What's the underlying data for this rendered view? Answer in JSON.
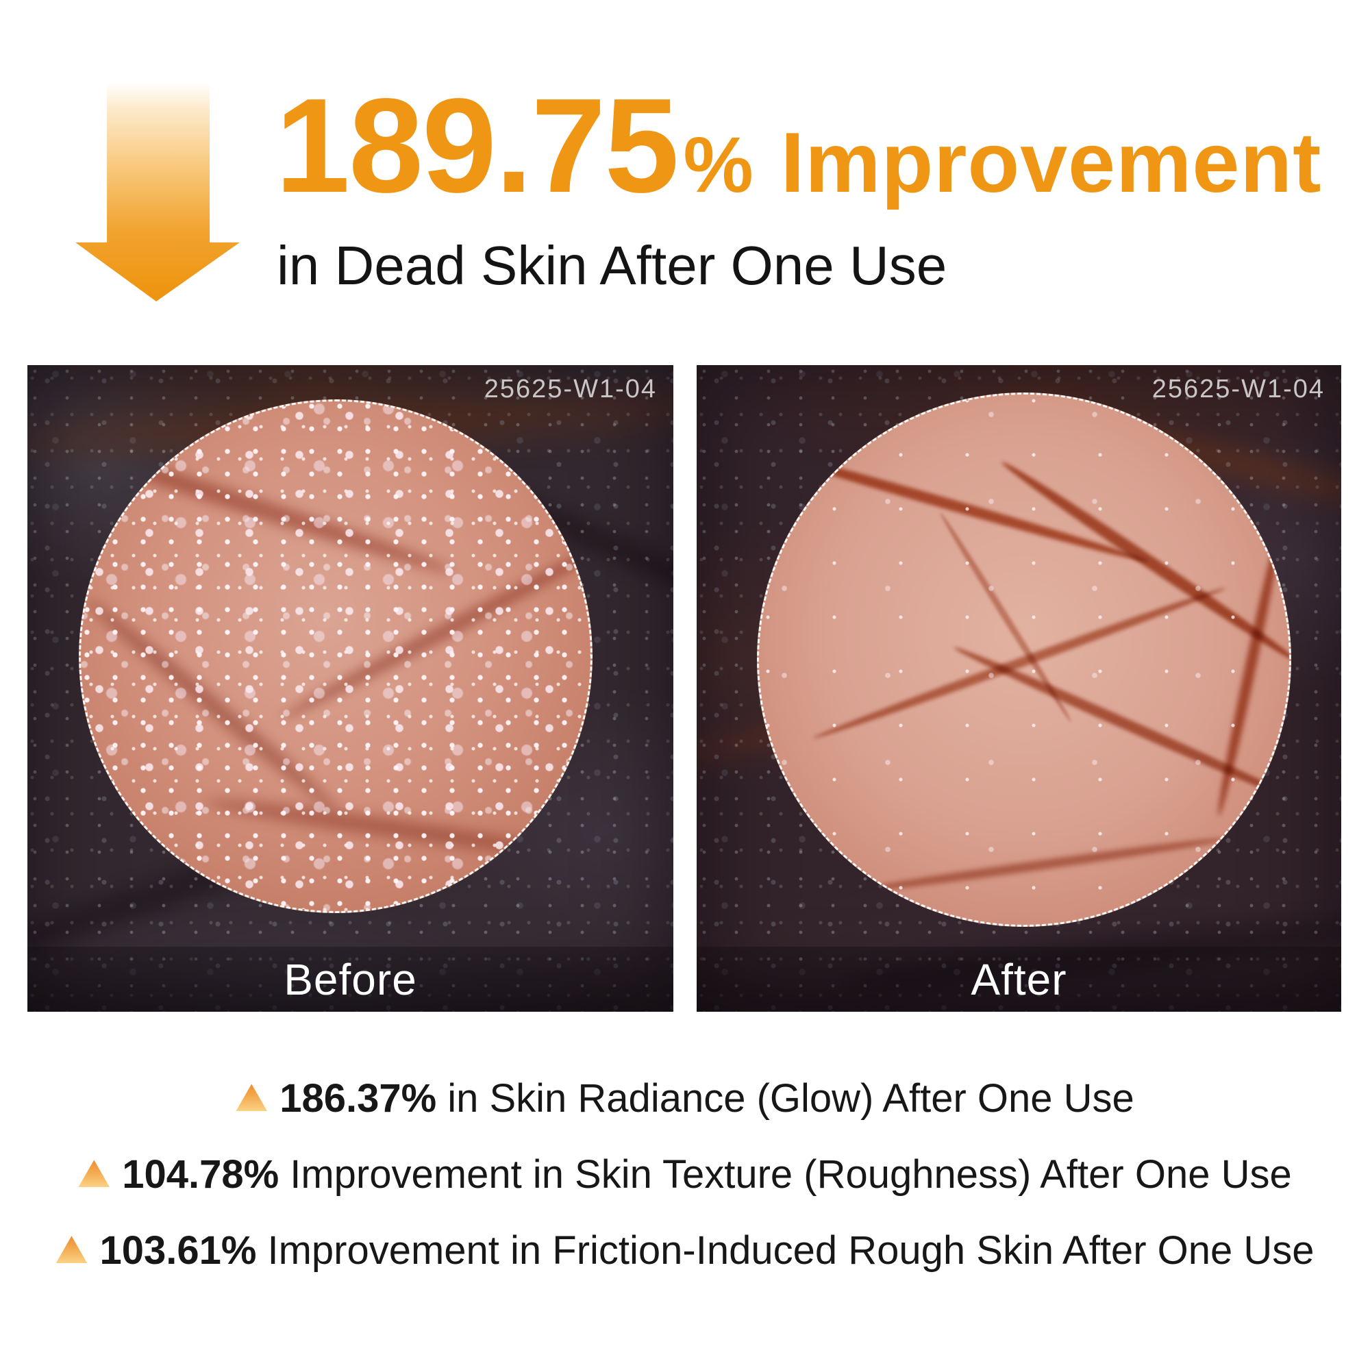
{
  "header": {
    "value": "189.75",
    "percent_sign": "%",
    "suffix": "Improvement",
    "subline": "in Dead Skin After One Use"
  },
  "comparison": {
    "before": {
      "label": "Before",
      "code": "25625-W1-04"
    },
    "after": {
      "label": "After",
      "code": "25625-W1-04"
    }
  },
  "stats": [
    {
      "marker": "up-triangle",
      "value": "186.37%",
      "text": "in Skin Radiance (Glow) After One Use"
    },
    {
      "marker": "up-triangle",
      "value": "104.78%",
      "text": "Improvement in Skin Texture (Roughness) After One Use"
    },
    {
      "marker": "up-triangle",
      "value": "103.61%",
      "text": "Improvement in Friction-Induced Rough Skin After One Use"
    }
  ],
  "colors": {
    "accent_orange": "#EF9715",
    "body_text": "#171717",
    "photo_code_text": "#C9C6C8",
    "photo_label_text": "#FFFFFF"
  },
  "icons": {
    "header_marker": "down-arrow-icon",
    "stat_marker": "up-triangle-icon"
  }
}
